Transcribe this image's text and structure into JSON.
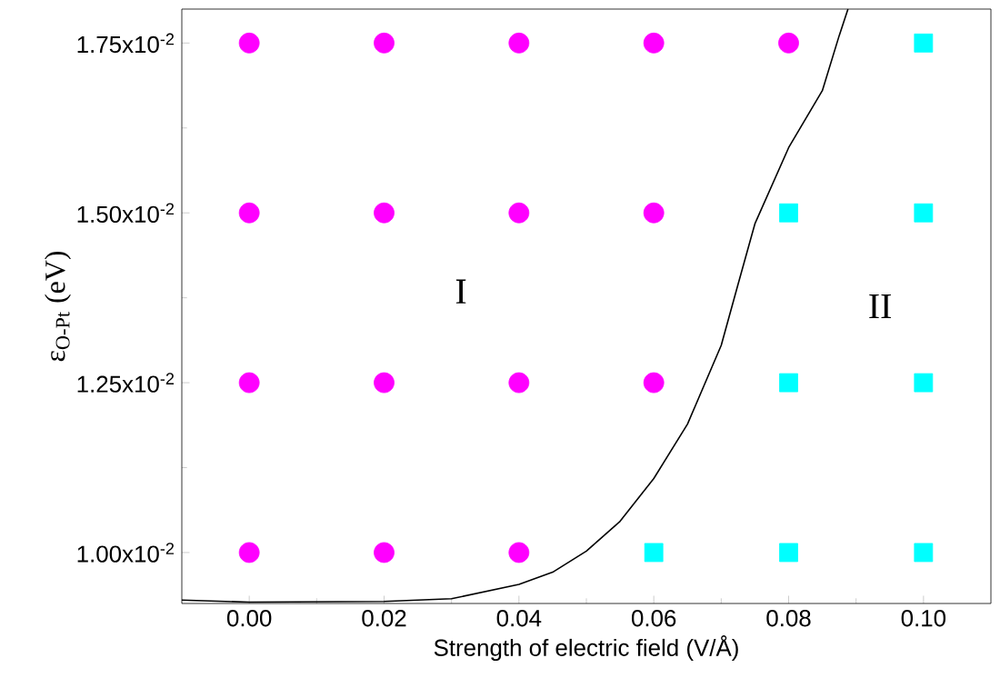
{
  "chart_data": {
    "type": "scatter",
    "xlabel": "Strength of electric field (V/Å)",
    "ylabel": "ε$_{O-Pt}$ (eV)",
    "xlim": [
      -0.01,
      0.11
    ],
    "xticks": [
      {
        "value": 0.0,
        "label": "0.00"
      },
      {
        "value": 0.02,
        "label": "0.02"
      },
      {
        "value": 0.04,
        "label": "0.04"
      },
      {
        "value": 0.06,
        "label": "0.06"
      },
      {
        "value": 0.08,
        "label": "0.08"
      },
      {
        "value": 0.1,
        "label": "0.10"
      }
    ],
    "ylim": [
      0.00925,
      0.018
    ],
    "yticks": [
      {
        "value": 0.01,
        "label": "1.00x10$^{-2}$"
      },
      {
        "value": 0.0125,
        "label": "1.25x10$^{-2}$"
      },
      {
        "value": 0.015,
        "label": "1.50x10$^{-2}$"
      },
      {
        "value": 0.0175,
        "label": "1.75x10$^{-2}$"
      }
    ],
    "series": [
      {
        "marker": "circle",
        "color": "#ff00ff",
        "x": [
          0,
          0,
          0,
          0,
          0.02,
          0.02,
          0.02,
          0.02,
          0.04,
          0.04,
          0.04,
          0.04,
          0.06,
          0.06,
          0.06,
          0.08
        ],
        "values": [
          0.01,
          0.0125,
          0.015,
          0.0175,
          0.01,
          0.0125,
          0.015,
          0.0175,
          0.01,
          0.0125,
          0.015,
          0.0175,
          0.0125,
          0.015,
          0.0175,
          0.0175
        ]
      },
      {
        "marker": "square",
        "color": "#00ffff",
        "x": [
          0.06,
          0.08,
          0.08,
          0.08,
          0.1,
          0.1,
          0.1,
          0.1
        ],
        "values": [
          0.01,
          0.01,
          0.0125,
          0.015,
          0.01,
          0.0125,
          0.015,
          0.0175
        ]
      },
      {
        "type": "line",
        "color": "#000000",
        "x": [
          -0.01,
          0.0,
          0.02,
          0.03,
          0.04,
          0.045,
          0.05,
          0.055,
          0.06,
          0.065,
          0.07,
          0.0725,
          0.075,
          0.08,
          0.085,
          0.0875,
          0.0888
        ],
        "values": [
          0.0093,
          0.00927,
          0.00928,
          0.00932,
          0.00953,
          0.00971,
          0.01002,
          0.01046,
          0.01109,
          0.01189,
          0.01305,
          0.01395,
          0.01484,
          0.01596,
          0.0168,
          0.01761,
          0.018
        ]
      }
    ],
    "annotations": [
      "I",
      "II"
    ]
  }
}
